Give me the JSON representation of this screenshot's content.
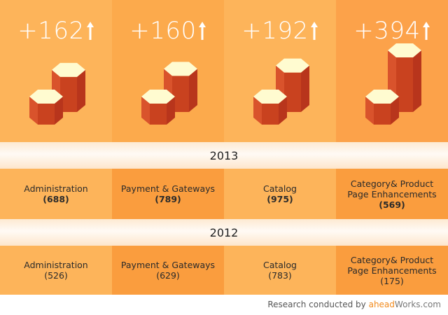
{
  "columns": [
    {
      "delta": "+162",
      "name_2013": "Administration",
      "val_2013": "(688)",
      "name_2012": "Administration",
      "val_2012": "(526)",
      "tall_ratio": 0.42
    },
    {
      "delta": "+160",
      "name_2013": "Payment & Gateways",
      "val_2013": "(789)",
      "name_2012": "Payment & Gateways",
      "val_2012": "(629)",
      "tall_ratio": 0.45
    },
    {
      "delta": "+192",
      "name_2013": "Catalog",
      "val_2013": "(975)",
      "name_2012": "Catalog",
      "val_2012": "(783)",
      "tall_ratio": 0.55
    },
    {
      "delta": "+394",
      "name_2013": "Category& Product Page Enhancements",
      "val_2013": "(569)",
      "name_2012": "Category& Product Page Enhancements",
      "val_2012": "(175)",
      "tall_ratio": 1.0
    }
  ],
  "years": {
    "y2013": "2013",
    "y2012": "2012"
  },
  "footer": {
    "prefix": "Research conducted by ",
    "brand_a": "ahead",
    "brand_b": "Works.com"
  },
  "colors": {
    "hex_top": "#fffbd0",
    "hex_left": "#d9532c",
    "hex_right": "#b8351c",
    "accent": "#f28a1c"
  },
  "icons": {
    "delta_arrow": "up-arrow-icon"
  }
}
